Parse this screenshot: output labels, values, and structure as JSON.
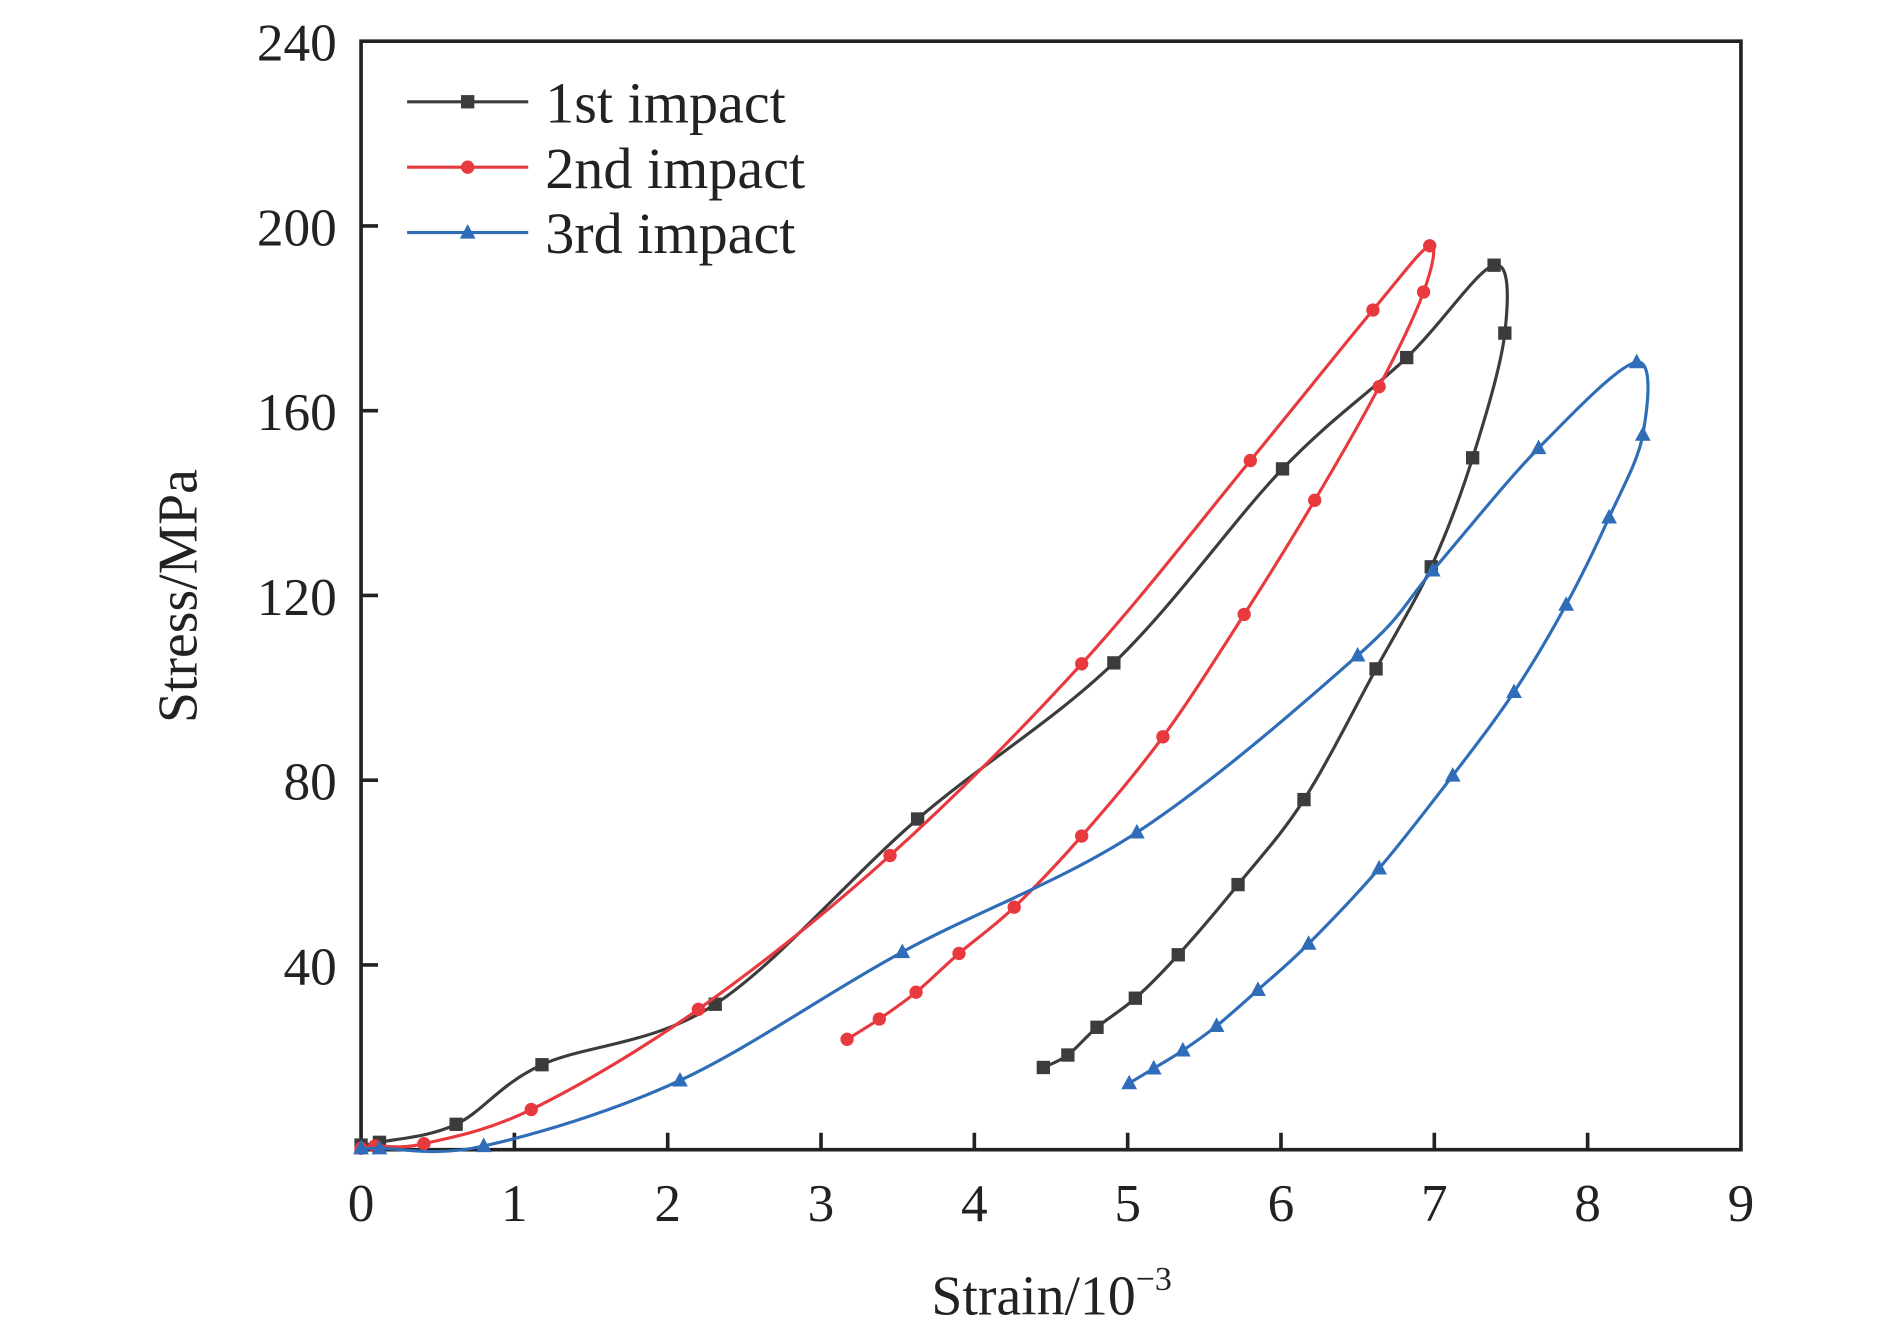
{
  "chart_data": {
    "type": "line",
    "title": "",
    "xlabel": "Strain/10",
    "xlabel_exponent": "−3",
    "ylabel": "Stress/MPa",
    "xlim": [
      0,
      9
    ],
    "ylim": [
      0,
      240
    ],
    "xticks": [
      "0",
      "1",
      "2",
      "3",
      "4",
      "5",
      "6",
      "7",
      "8",
      "9"
    ],
    "yticks": [
      "40",
      "80",
      "120",
      "160",
      "200",
      "240"
    ],
    "grid": false,
    "legend_position": "top-left",
    "series": [
      {
        "name": "1st impact",
        "color": "#3c3c3c",
        "marker": "square",
        "x": [
          0,
          0.12,
          0.62,
          1.18,
          2.31,
          3.63,
          4.91,
          6.01,
          6.82,
          7.39,
          7.46,
          7.25,
          6.98,
          6.62,
          6.15,
          5.72,
          5.33,
          5.05,
          4.8,
          4.61,
          4.45
        ],
        "y": [
          1,
          1.6,
          5.5,
          18.4,
          31.5,
          71.6,
          105.4,
          147.4,
          171.5,
          191.5,
          176.8,
          149.8,
          126.2,
          104.1,
          75.8,
          57.4,
          42.2,
          32.8,
          26.5,
          20.5,
          17.8
        ]
      },
      {
        "name": "2nd impact",
        "color": "#e8393f",
        "marker": "circle",
        "x": [
          0,
          0.09,
          0.41,
          1.11,
          2.2,
          3.45,
          4.7,
          5.8,
          6.6,
          6.97,
          6.93,
          6.64,
          6.22,
          5.76,
          5.23,
          4.7,
          4.26,
          3.9,
          3.62,
          3.38,
          3.17
        ],
        "y": [
          0.3,
          0.8,
          1.3,
          8.7,
          30.4,
          63.7,
          105.2,
          149.2,
          181.8,
          195.7,
          185.7,
          165.2,
          140.6,
          115.9,
          89.4,
          67.9,
          52.5,
          42.5,
          34.1,
          28.3,
          23.9
        ]
      },
      {
        "name": "3rd impact",
        "color": "#2f6db8",
        "marker": "triangle",
        "x": [
          0,
          0.12,
          0.8,
          2.08,
          3.53,
          5.06,
          6.5,
          6.99,
          7.68,
          8.32,
          8.36,
          8.14,
          7.86,
          7.52,
          7.12,
          6.64,
          6.18,
          5.85,
          5.58,
          5.36,
          5.17,
          5.01
        ],
        "y": [
          0.3,
          0.3,
          0.8,
          15.0,
          42.8,
          68.7,
          107.0,
          125.4,
          151.9,
          170.5,
          154.8,
          136.9,
          118.0,
          99.1,
          81.0,
          60.9,
          44.6,
          34.6,
          26.8,
          21.5,
          17.6,
          14.4
        ]
      }
    ]
  }
}
